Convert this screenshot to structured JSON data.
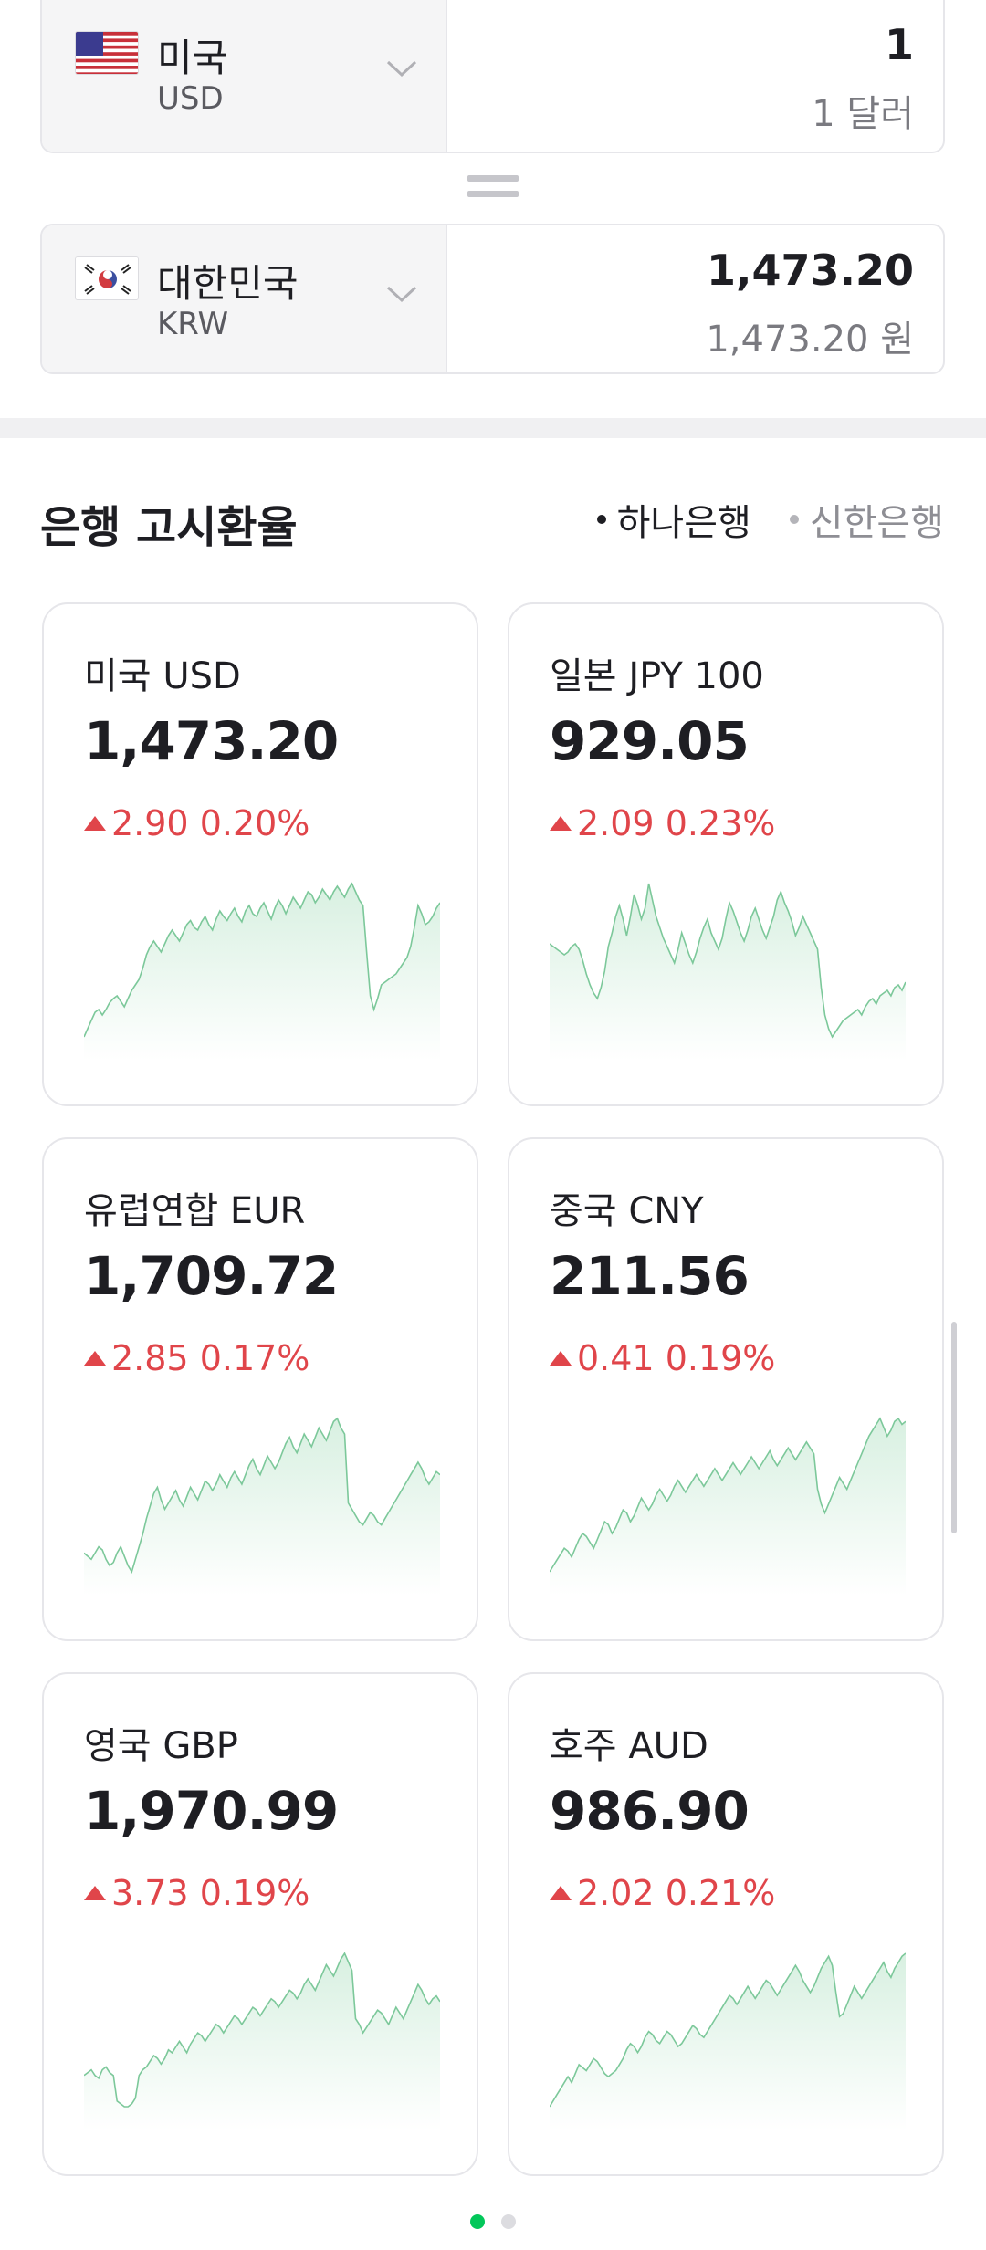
{
  "converter": {
    "from": {
      "name": "미국",
      "code": "USD",
      "amount": "1",
      "amount_text": "1 달러",
      "flag": "us-flag-icon"
    },
    "to": {
      "name": "대한민국",
      "code": "KRW",
      "amount": "1,473.20",
      "amount_text": "1,473.20 원",
      "flag": "kr-flag-icon"
    }
  },
  "bank_section": {
    "title": "은행 고시환율",
    "tabs": [
      {
        "label": "하나은행",
        "active": true
      },
      {
        "label": "신한은행",
        "active": false
      }
    ]
  },
  "cards": [
    {
      "name": "미국 USD",
      "rate": "1,473.20",
      "change": "2.90 0.20%",
      "trend": [
        30,
        36,
        42,
        48,
        50,
        46,
        50,
        55,
        58,
        60,
        56,
        52,
        58,
        64,
        68,
        72,
        80,
        90,
        96,
        100,
        96,
        92,
        98,
        104,
        108,
        104,
        100,
        106,
        112,
        115,
        110,
        108,
        114,
        118,
        112,
        108,
        116,
        122,
        118,
        115,
        120,
        124,
        118,
        114,
        122,
        126,
        120,
        118,
        124,
        128,
        122,
        116,
        124,
        130,
        126,
        120,
        126,
        132,
        128,
        124,
        130,
        136,
        134,
        128,
        132,
        138,
        134,
        130,
        136,
        140,
        136,
        132,
        138,
        142,
        136,
        130,
        126,
        92,
        60,
        50,
        58,
        68,
        70,
        72,
        74,
        76,
        80,
        84,
        88,
        96,
        110,
        126,
        120,
        112,
        114,
        118,
        124,
        128
      ]
    },
    {
      "name": "일본 JPY 100",
      "rate": "929.05",
      "change": "2.09 0.23%",
      "trend": [
        92,
        90,
        88,
        86,
        84,
        86,
        90,
        92,
        88,
        80,
        70,
        62,
        56,
        52,
        60,
        72,
        90,
        100,
        112,
        120,
        110,
        98,
        112,
        128,
        120,
        110,
        118,
        136,
        124,
        112,
        104,
        96,
        90,
        84,
        78,
        88,
        100,
        92,
        84,
        78,
        86,
        96,
        104,
        110,
        100,
        94,
        88,
        96,
        110,
        122,
        116,
        108,
        100,
        94,
        102,
        112,
        118,
        110,
        102,
        96,
        104,
        112,
        124,
        130,
        122,
        116,
        108,
        98,
        104,
        112,
        106,
        100,
        94,
        88,
        60,
        40,
        30,
        24,
        28,
        32,
        36,
        38,
        40,
        42,
        44,
        40,
        46,
        50,
        52,
        48,
        54,
        56,
        58,
        54,
        60,
        62,
        58,
        64
      ]
    },
    {
      "name": "유럽연합 EUR",
      "rate": "1,709.72",
      "change": "2.85 0.17%",
      "trend": [
        40,
        38,
        36,
        40,
        44,
        42,
        36,
        32,
        34,
        40,
        44,
        38,
        32,
        28,
        36,
        44,
        52,
        62,
        70,
        78,
        82,
        74,
        68,
        72,
        76,
        80,
        74,
        70,
        76,
        82,
        78,
        74,
        80,
        86,
        84,
        80,
        84,
        90,
        86,
        82,
        88,
        92,
        88,
        84,
        90,
        96,
        100,
        94,
        90,
        96,
        102,
        98,
        94,
        98,
        104,
        110,
        114,
        108,
        104,
        110,
        116,
        112,
        108,
        114,
        120,
        116,
        112,
        118,
        124,
        126,
        120,
        116,
        72,
        68,
        64,
        60,
        58,
        62,
        66,
        64,
        60,
        58,
        62,
        66,
        70,
        74,
        78,
        82,
        86,
        90,
        94,
        98,
        94,
        88,
        84,
        88,
        92,
        90
      ]
    },
    {
      "name": "중국 CNY",
      "rate": "211.56",
      "change": "0.41 0.19%",
      "trend": [
        24,
        28,
        32,
        36,
        40,
        38,
        34,
        40,
        46,
        50,
        48,
        44,
        40,
        46,
        52,
        58,
        56,
        50,
        54,
        60,
        66,
        64,
        58,
        62,
        68,
        74,
        70,
        66,
        70,
        76,
        80,
        76,
        72,
        76,
        82,
        86,
        82,
        78,
        82,
        86,
        90,
        86,
        82,
        86,
        90,
        94,
        90,
        86,
        90,
        94,
        98,
        94,
        90,
        94,
        98,
        102,
        98,
        94,
        98,
        102,
        106,
        100,
        96,
        100,
        104,
        108,
        104,
        100,
        104,
        108,
        112,
        108,
        104,
        80,
        70,
        64,
        70,
        76,
        82,
        88,
        84,
        80,
        86,
        92,
        98,
        104,
        110,
        116,
        120,
        124,
        128,
        122,
        116,
        120,
        126,
        128,
        124,
        126
      ]
    },
    {
      "name": "영국 GBP",
      "rate": "1,970.99",
      "change": "3.73 0.19%",
      "trend": [
        40,
        42,
        44,
        40,
        38,
        44,
        46,
        42,
        40,
        22,
        20,
        18,
        18,
        20,
        24,
        40,
        44,
        46,
        50,
        54,
        52,
        48,
        52,
        58,
        56,
        60,
        64,
        60,
        56,
        62,
        66,
        70,
        68,
        64,
        68,
        72,
        76,
        74,
        70,
        74,
        78,
        82,
        80,
        76,
        80,
        84,
        88,
        86,
        82,
        86,
        90,
        94,
        92,
        88,
        92,
        96,
        100,
        98,
        94,
        98,
        104,
        108,
        104,
        100,
        106,
        112,
        118,
        114,
        110,
        116,
        122,
        126,
        120,
        114,
        80,
        76,
        70,
        74,
        78,
        82,
        86,
        84,
        80,
        76,
        82,
        88,
        84,
        80,
        86,
        92,
        98,
        104,
        100,
        94,
        90,
        94,
        96,
        92
      ]
    },
    {
      "name": "호주 AUD",
      "rate": "986.90",
      "change": "2.02 0.21%",
      "trend": [
        24,
        28,
        32,
        36,
        40,
        44,
        40,
        46,
        52,
        50,
        48,
        52,
        56,
        54,
        50,
        46,
        44,
        46,
        48,
        52,
        56,
        62,
        66,
        64,
        60,
        64,
        70,
        74,
        72,
        68,
        66,
        70,
        74,
        72,
        68,
        64,
        66,
        70,
        74,
        78,
        76,
        72,
        70,
        74,
        78,
        82,
        86,
        90,
        94,
        98,
        96,
        92,
        96,
        100,
        104,
        100,
        96,
        100,
        104,
        108,
        106,
        102,
        98,
        102,
        106,
        110,
        114,
        118,
        114,
        108,
        104,
        100,
        104,
        110,
        116,
        120,
        124,
        118,
        100,
        84,
        86,
        92,
        98,
        104,
        100,
        96,
        100,
        104,
        108,
        112,
        116,
        120,
        114,
        110,
        116,
        120,
        124,
        126
      ]
    }
  ],
  "pager": {
    "total": 2,
    "current": 1
  },
  "colors": {
    "spark_line": "#7cc89a",
    "spark_fill": "#e9f7ee",
    "up": "#e0454a",
    "accent": "#03c75a"
  }
}
